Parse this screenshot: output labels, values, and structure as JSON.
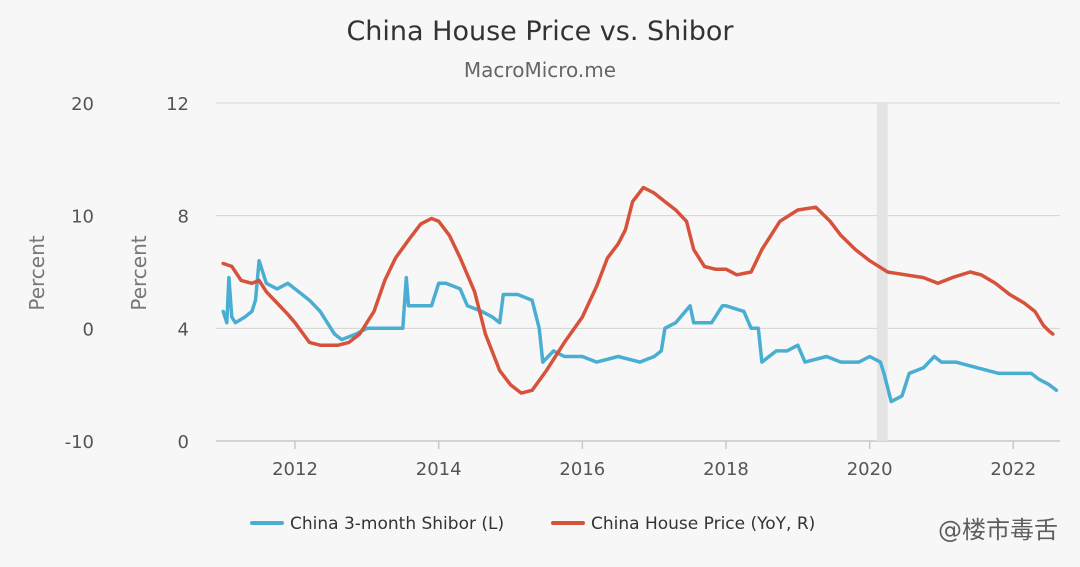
{
  "chart_data": {
    "type": "line",
    "title": "China House Price vs. Shibor",
    "subtitle": "MacroMicro.me",
    "x_ticks": [
      "2012",
      "2014",
      "2016",
      "2018",
      "2020",
      "2022"
    ],
    "y_left": {
      "label": "Percent",
      "ticks": [
        "20",
        "10",
        "0",
        "-10"
      ],
      "range": [
        -10,
        20
      ]
    },
    "y_right": {
      "label": "Percent",
      "ticks": [
        "12",
        "8",
        "4",
        "0"
      ],
      "range": [
        0,
        12
      ]
    },
    "shaded_period": {
      "from": 2020.1,
      "to": 2020.25
    },
    "series": [
      {
        "name": "China 3-month Shibor (L)",
        "axis": "left",
        "color": "#4aaed3",
        "points": [
          [
            2011.0,
            1.5
          ],
          [
            2011.05,
            0.5
          ],
          [
            2011.08,
            4.5
          ],
          [
            2011.12,
            1.0
          ],
          [
            2011.17,
            0.5
          ],
          [
            2011.3,
            1.0
          ],
          [
            2011.4,
            1.5
          ],
          [
            2011.45,
            2.5
          ],
          [
            2011.5,
            6.0
          ],
          [
            2011.55,
            5.0
          ],
          [
            2011.6,
            4.0
          ],
          [
            2011.75,
            3.5
          ],
          [
            2011.9,
            4.0
          ],
          [
            2012.0,
            3.5
          ],
          [
            2012.1,
            3.0
          ],
          [
            2012.2,
            2.5
          ],
          [
            2012.35,
            1.5
          ],
          [
            2012.45,
            0.5
          ],
          [
            2012.55,
            -0.5
          ],
          [
            2012.65,
            -1.0
          ],
          [
            2012.85,
            -0.5
          ],
          [
            2013.0,
            0.0
          ],
          [
            2013.2,
            0.0
          ],
          [
            2013.5,
            0.0
          ],
          [
            2013.55,
            4.5
          ],
          [
            2013.58,
            2.0
          ],
          [
            2013.9,
            2.0
          ],
          [
            2014.0,
            4.0
          ],
          [
            2014.1,
            4.0
          ],
          [
            2014.3,
            3.5
          ],
          [
            2014.4,
            2.0
          ],
          [
            2014.6,
            1.5
          ],
          [
            2014.75,
            1.0
          ],
          [
            2014.85,
            0.5
          ],
          [
            2014.9,
            3.0
          ],
          [
            2015.1,
            3.0
          ],
          [
            2015.3,
            2.5
          ],
          [
            2015.4,
            0.0
          ],
          [
            2015.45,
            -3.0
          ],
          [
            2015.6,
            -2.0
          ],
          [
            2015.75,
            -2.5
          ],
          [
            2016.0,
            -2.5
          ],
          [
            2016.2,
            -3.0
          ],
          [
            2016.5,
            -2.5
          ],
          [
            2016.8,
            -3.0
          ],
          [
            2017.0,
            -2.5
          ],
          [
            2017.1,
            -2.0
          ],
          [
            2017.15,
            0.0
          ],
          [
            2017.3,
            0.5
          ],
          [
            2017.5,
            2.0
          ],
          [
            2017.55,
            0.5
          ],
          [
            2017.8,
            0.5
          ],
          [
            2017.95,
            2.0
          ],
          [
            2018.0,
            2.0
          ],
          [
            2018.25,
            1.5
          ],
          [
            2018.35,
            0.0
          ],
          [
            2018.45,
            0.0
          ],
          [
            2018.5,
            -3.0
          ],
          [
            2018.7,
            -2.0
          ],
          [
            2018.85,
            -2.0
          ],
          [
            2019.0,
            -1.5
          ],
          [
            2019.1,
            -3.0
          ],
          [
            2019.4,
            -2.5
          ],
          [
            2019.6,
            -3.0
          ],
          [
            2019.85,
            -3.0
          ],
          [
            2020.0,
            -2.5
          ],
          [
            2020.15,
            -3.0
          ],
          [
            2020.2,
            -4.0
          ],
          [
            2020.3,
            -6.5
          ],
          [
            2020.45,
            -6.0
          ],
          [
            2020.55,
            -4.0
          ],
          [
            2020.75,
            -3.5
          ],
          [
            2020.9,
            -2.5
          ],
          [
            2021.0,
            -3.0
          ],
          [
            2021.2,
            -3.0
          ],
          [
            2021.5,
            -3.5
          ],
          [
            2021.8,
            -4.0
          ],
          [
            2022.1,
            -4.0
          ],
          [
            2022.25,
            -4.0
          ],
          [
            2022.35,
            -4.5
          ],
          [
            2022.5,
            -5.0
          ],
          [
            2022.6,
            -5.5
          ]
        ]
      },
      {
        "name": "China House Price (YoY, R)",
        "axis": "right",
        "color": "#d6523b",
        "points": [
          [
            2011.0,
            6.3
          ],
          [
            2011.12,
            6.2
          ],
          [
            2011.25,
            5.7
          ],
          [
            2011.4,
            5.6
          ],
          [
            2011.5,
            5.7
          ],
          [
            2011.6,
            5.3
          ],
          [
            2011.75,
            4.9
          ],
          [
            2011.9,
            4.5
          ],
          [
            2012.0,
            4.2
          ],
          [
            2012.2,
            3.5
          ],
          [
            2012.35,
            3.4
          ],
          [
            2012.6,
            3.4
          ],
          [
            2012.75,
            3.5
          ],
          [
            2012.9,
            3.8
          ],
          [
            2013.1,
            4.6
          ],
          [
            2013.25,
            5.7
          ],
          [
            2013.4,
            6.5
          ],
          [
            2013.6,
            7.2
          ],
          [
            2013.75,
            7.7
          ],
          [
            2013.9,
            7.9
          ],
          [
            2014.0,
            7.8
          ],
          [
            2014.15,
            7.3
          ],
          [
            2014.3,
            6.5
          ],
          [
            2014.5,
            5.3
          ],
          [
            2014.65,
            3.8
          ],
          [
            2014.85,
            2.5
          ],
          [
            2015.0,
            2.0
          ],
          [
            2015.15,
            1.7
          ],
          [
            2015.3,
            1.8
          ],
          [
            2015.5,
            2.5
          ],
          [
            2015.75,
            3.5
          ],
          [
            2016.0,
            4.4
          ],
          [
            2016.2,
            5.5
          ],
          [
            2016.35,
            6.5
          ],
          [
            2016.5,
            7.0
          ],
          [
            2016.6,
            7.5
          ],
          [
            2016.7,
            8.5
          ],
          [
            2016.85,
            9.0
          ],
          [
            2017.0,
            8.8
          ],
          [
            2017.15,
            8.5
          ],
          [
            2017.3,
            8.2
          ],
          [
            2017.45,
            7.8
          ],
          [
            2017.55,
            6.8
          ],
          [
            2017.7,
            6.2
          ],
          [
            2017.85,
            6.1
          ],
          [
            2018.0,
            6.1
          ],
          [
            2018.15,
            5.9
          ],
          [
            2018.35,
            6.0
          ],
          [
            2018.5,
            6.8
          ],
          [
            2018.75,
            7.8
          ],
          [
            2019.0,
            8.2
          ],
          [
            2019.25,
            8.3
          ],
          [
            2019.45,
            7.8
          ],
          [
            2019.6,
            7.3
          ],
          [
            2019.8,
            6.8
          ],
          [
            2020.0,
            6.4
          ],
          [
            2020.25,
            6.0
          ],
          [
            2020.5,
            5.9
          ],
          [
            2020.75,
            5.8
          ],
          [
            2020.95,
            5.6
          ],
          [
            2021.15,
            5.8
          ],
          [
            2021.4,
            6.0
          ],
          [
            2021.55,
            5.9
          ],
          [
            2021.75,
            5.6
          ],
          [
            2021.95,
            5.2
          ],
          [
            2022.15,
            4.9
          ],
          [
            2022.3,
            4.6
          ],
          [
            2022.42,
            4.1
          ],
          [
            2022.5,
            3.9
          ],
          [
            2022.55,
            3.8
          ]
        ]
      }
    ],
    "legend_position": "bottom",
    "grid": true
  },
  "watermark": "@楼市毒舌"
}
